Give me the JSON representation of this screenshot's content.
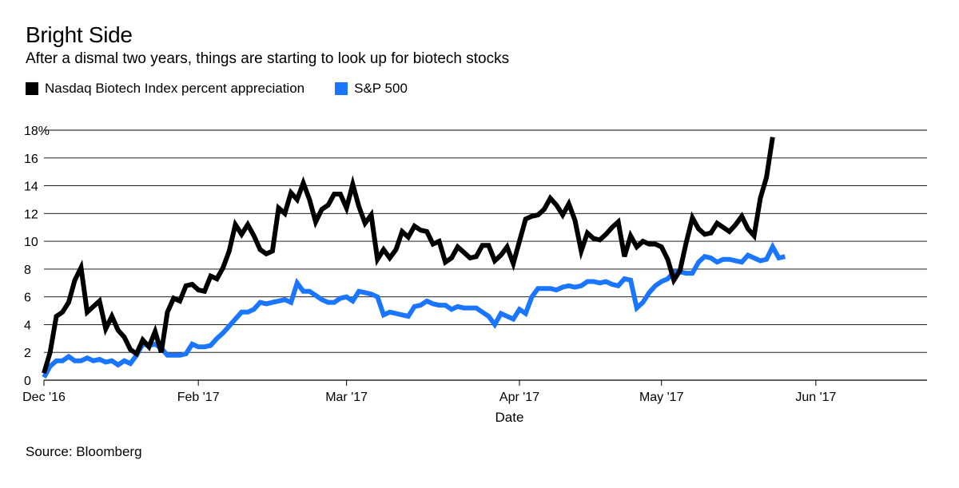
{
  "chart_data": {
    "type": "line",
    "title": "Bright Side",
    "subtitle": "After a dismal two years, things are starting to look up for biotech stocks",
    "xlabel": "Date",
    "ylabel": "",
    "ylim": [
      0,
      18
    ],
    "yticks": [
      0,
      2,
      4,
      6,
      8,
      10,
      12,
      14,
      16,
      18
    ],
    "ytick_labels": [
      "0",
      "2",
      "4",
      "6",
      "8",
      "10",
      "12",
      "14",
      "16",
      "18%"
    ],
    "xlim": [
      0,
      143
    ],
    "xticks": [
      {
        "x": 0,
        "label": "Dec '16"
      },
      {
        "x": 25,
        "label": "Feb '17"
      },
      {
        "x": 49,
        "label": "Mar '17"
      },
      {
        "x": 77,
        "label": "Apr '17"
      },
      {
        "x": 100,
        "label": "May '17"
      },
      {
        "x": 125,
        "label": "Jun '17"
      }
    ],
    "grid": true,
    "legend_position": "top-left",
    "series": [
      {
        "name": "Nasdaq Biotech Index percent appreciation",
        "color": "#000000",
        "points": [
          [
            0,
            0.5
          ],
          [
            1,
            2.0
          ],
          [
            2,
            4.6
          ],
          [
            3,
            4.9
          ],
          [
            4,
            5.6
          ],
          [
            5,
            7.2
          ],
          [
            6,
            8.1
          ],
          [
            7,
            4.9
          ],
          [
            8,
            5.3
          ],
          [
            9,
            5.7
          ],
          [
            10,
            3.7
          ],
          [
            11,
            4.6
          ],
          [
            12,
            3.6
          ],
          [
            13,
            3.1
          ],
          [
            14,
            2.2
          ],
          [
            15,
            1.9
          ],
          [
            16,
            2.9
          ],
          [
            17,
            2.4
          ],
          [
            18,
            3.5
          ],
          [
            19,
            2.0
          ],
          [
            20,
            4.9
          ],
          [
            21,
            5.9
          ],
          [
            22,
            5.7
          ],
          [
            23,
            6.8
          ],
          [
            24,
            6.9
          ],
          [
            25,
            6.5
          ],
          [
            26,
            6.4
          ],
          [
            27,
            7.5
          ],
          [
            28,
            7.3
          ],
          [
            29,
            8.1
          ],
          [
            30,
            9.3
          ],
          [
            31,
            11.2
          ],
          [
            32,
            10.5
          ],
          [
            33,
            11.2
          ],
          [
            34,
            10.4
          ],
          [
            35,
            9.4
          ],
          [
            36,
            9.1
          ],
          [
            37,
            9.3
          ],
          [
            38,
            12.4
          ],
          [
            39,
            12.0
          ],
          [
            40,
            13.5
          ],
          [
            41,
            13.0
          ],
          [
            42,
            14.2
          ],
          [
            43,
            13.0
          ],
          [
            44,
            11.4
          ],
          [
            45,
            12.3
          ],
          [
            46,
            12.6
          ],
          [
            47,
            13.4
          ],
          [
            48,
            13.4
          ],
          [
            49,
            12.4
          ],
          [
            50,
            14.1
          ],
          [
            51,
            12.5
          ],
          [
            52,
            11.3
          ],
          [
            53,
            11.9
          ],
          [
            54,
            8.7
          ],
          [
            55,
            9.4
          ],
          [
            56,
            8.8
          ],
          [
            57,
            9.4
          ],
          [
            58,
            10.7
          ],
          [
            59,
            10.3
          ],
          [
            60,
            11.1
          ],
          [
            61,
            10.8
          ],
          [
            62,
            10.7
          ],
          [
            63,
            9.8
          ],
          [
            64,
            10.0
          ],
          [
            65,
            8.5
          ],
          [
            66,
            8.8
          ],
          [
            67,
            9.6
          ],
          [
            68,
            9.2
          ],
          [
            69,
            8.8
          ],
          [
            70,
            8.9
          ],
          [
            71,
            9.7
          ],
          [
            72,
            9.7
          ],
          [
            73,
            8.6
          ],
          [
            74,
            9.0
          ],
          [
            75,
            9.6
          ],
          [
            76,
            8.4
          ],
          [
            77,
            10.0
          ],
          [
            78,
            11.6
          ],
          [
            79,
            11.8
          ],
          [
            80,
            11.9
          ],
          [
            81,
            12.3
          ],
          [
            82,
            13.1
          ],
          [
            83,
            12.6
          ],
          [
            84,
            11.9
          ],
          [
            85,
            12.7
          ],
          [
            86,
            11.5
          ],
          [
            87,
            9.3
          ],
          [
            88,
            10.6
          ],
          [
            89,
            10.2
          ],
          [
            90,
            10.1
          ],
          [
            91,
            10.5
          ],
          [
            92,
            11.0
          ],
          [
            93,
            11.4
          ],
          [
            94,
            8.9
          ],
          [
            95,
            10.4
          ],
          [
            96,
            9.6
          ],
          [
            97,
            10.0
          ],
          [
            98,
            9.8
          ],
          [
            99,
            9.8
          ],
          [
            100,
            9.6
          ],
          [
            101,
            8.7
          ],
          [
            102,
            7.2
          ],
          [
            103,
            7.9
          ],
          [
            104,
            9.9
          ],
          [
            105,
            11.7
          ],
          [
            106,
            10.9
          ],
          [
            107,
            10.5
          ],
          [
            108,
            10.6
          ],
          [
            109,
            11.3
          ],
          [
            110,
            11.0
          ],
          [
            111,
            10.7
          ],
          [
            112,
            11.2
          ],
          [
            113,
            11.8
          ],
          [
            114,
            10.9
          ],
          [
            115,
            10.4
          ],
          [
            116,
            13.1
          ],
          [
            117,
            14.6
          ],
          [
            118,
            17.5
          ]
        ]
      },
      {
        "name": "S&P 500",
        "color": "#1a75ff",
        "points": [
          [
            0,
            0.2
          ],
          [
            1,
            1.0
          ],
          [
            2,
            1.4
          ],
          [
            3,
            1.4
          ],
          [
            4,
            1.7
          ],
          [
            5,
            1.4
          ],
          [
            6,
            1.4
          ],
          [
            7,
            1.6
          ],
          [
            8,
            1.4
          ],
          [
            9,
            1.5
          ],
          [
            10,
            1.3
          ],
          [
            11,
            1.4
          ],
          [
            12,
            1.1
          ],
          [
            13,
            1.4
          ],
          [
            14,
            1.2
          ],
          [
            15,
            1.8
          ],
          [
            16,
            2.6
          ],
          [
            17,
            2.5
          ],
          [
            18,
            2.6
          ],
          [
            19,
            2.3
          ],
          [
            20,
            1.8
          ],
          [
            21,
            1.8
          ],
          [
            22,
            1.8
          ],
          [
            23,
            1.9
          ],
          [
            24,
            2.6
          ],
          [
            25,
            2.4
          ],
          [
            26,
            2.4
          ],
          [
            27,
            2.5
          ],
          [
            28,
            3.0
          ],
          [
            29,
            3.4
          ],
          [
            30,
            3.9
          ],
          [
            31,
            4.4
          ],
          [
            32,
            4.9
          ],
          [
            33,
            4.9
          ],
          [
            34,
            5.1
          ],
          [
            35,
            5.6
          ],
          [
            36,
            5.5
          ],
          [
            37,
            5.6
          ],
          [
            38,
            5.7
          ],
          [
            39,
            5.8
          ],
          [
            40,
            5.6
          ],
          [
            41,
            7.0
          ],
          [
            42,
            6.4
          ],
          [
            43,
            6.4
          ],
          [
            44,
            6.1
          ],
          [
            45,
            5.8
          ],
          [
            46,
            5.6
          ],
          [
            47,
            5.6
          ],
          [
            48,
            5.9
          ],
          [
            49,
            6.0
          ],
          [
            50,
            5.7
          ],
          [
            51,
            6.4
          ],
          [
            52,
            6.3
          ],
          [
            53,
            6.2
          ],
          [
            54,
            6.0
          ],
          [
            55,
            4.7
          ],
          [
            56,
            4.9
          ],
          [
            57,
            4.8
          ],
          [
            58,
            4.7
          ],
          [
            59,
            4.6
          ],
          [
            60,
            5.3
          ],
          [
            61,
            5.4
          ],
          [
            62,
            5.7
          ],
          [
            63,
            5.5
          ],
          [
            64,
            5.4
          ],
          [
            65,
            5.4
          ],
          [
            66,
            5.1
          ],
          [
            67,
            5.3
          ],
          [
            68,
            5.2
          ],
          [
            69,
            5.2
          ],
          [
            70,
            5.2
          ],
          [
            71,
            4.9
          ],
          [
            72,
            4.6
          ],
          [
            73,
            4.0
          ],
          [
            74,
            4.8
          ],
          [
            75,
            4.6
          ],
          [
            76,
            4.4
          ],
          [
            77,
            5.1
          ],
          [
            78,
            4.8
          ],
          [
            79,
            6.0
          ],
          [
            80,
            6.6
          ],
          [
            81,
            6.6
          ],
          [
            82,
            6.6
          ],
          [
            83,
            6.5
          ],
          [
            84,
            6.7
          ],
          [
            85,
            6.8
          ],
          [
            86,
            6.7
          ],
          [
            87,
            6.8
          ],
          [
            88,
            7.1
          ],
          [
            89,
            7.1
          ],
          [
            90,
            7.0
          ],
          [
            91,
            7.1
          ],
          [
            92,
            6.9
          ],
          [
            93,
            6.8
          ],
          [
            94,
            7.3
          ],
          [
            95,
            7.2
          ],
          [
            96,
            5.2
          ],
          [
            97,
            5.6
          ],
          [
            98,
            6.3
          ],
          [
            99,
            6.8
          ],
          [
            100,
            7.1
          ],
          [
            101,
            7.3
          ],
          [
            102,
            7.8
          ],
          [
            103,
            7.8
          ],
          [
            104,
            7.7
          ],
          [
            105,
            7.7
          ],
          [
            106,
            8.5
          ],
          [
            107,
            8.9
          ],
          [
            108,
            8.8
          ],
          [
            109,
            8.5
          ],
          [
            110,
            8.7
          ],
          [
            111,
            8.7
          ],
          [
            112,
            8.6
          ],
          [
            113,
            8.5
          ],
          [
            114,
            9.0
          ],
          [
            115,
            8.8
          ],
          [
            116,
            8.6
          ],
          [
            117,
            8.7
          ],
          [
            118,
            9.6
          ],
          [
            119,
            8.8
          ],
          [
            120,
            8.9
          ]
        ]
      }
    ],
    "source": "Source: Bloomberg"
  }
}
